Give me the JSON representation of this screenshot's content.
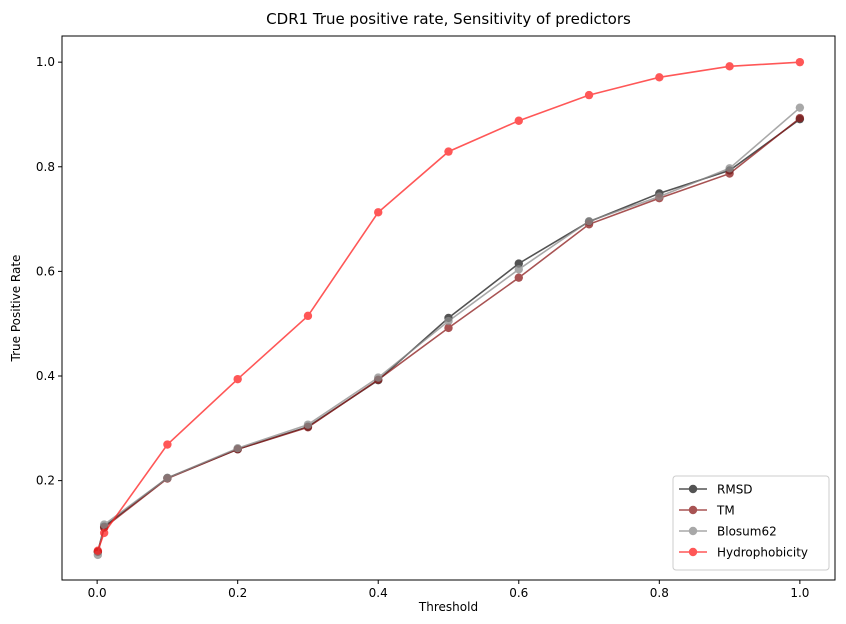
{
  "chart_data": {
    "type": "line",
    "title": "CDR1 True positive rate, Sensitivity of predictors",
    "xlabel": "Threshold",
    "ylabel": "True Positive Rate",
    "xlim": [
      -0.05,
      1.05
    ],
    "ylim": [
      0.01,
      1.05
    ],
    "x_ticks": [
      0.0,
      0.2,
      0.4,
      0.6,
      0.8,
      1.0
    ],
    "x_tick_labels": [
      "0.0",
      "0.2",
      "0.4",
      "0.6",
      "0.8",
      "1.0"
    ],
    "y_ticks": [
      0.2,
      0.4,
      0.6,
      0.8,
      1.0
    ],
    "y_tick_labels": [
      "0.2",
      "0.4",
      "0.6",
      "0.8",
      "1.0"
    ],
    "grid": false,
    "legend_position": "lower right",
    "x": [
      0.001,
      0.01,
      0.1,
      0.2,
      0.3,
      0.4,
      0.5,
      0.6,
      0.7,
      0.8,
      0.9,
      1.0
    ],
    "series": [
      {
        "name": "RMSD",
        "color": "#1a1a1a",
        "values": [
          0.064,
          0.112,
          0.205,
          0.26,
          0.303,
          0.392,
          0.511,
          0.615,
          0.695,
          0.749,
          0.793,
          0.891
        ]
      },
      {
        "name": "TM",
        "color": "#8b1a1a",
        "values": [
          0.064,
          0.11,
          0.204,
          0.26,
          0.302,
          0.393,
          0.492,
          0.588,
          0.69,
          0.74,
          0.787,
          0.893
        ]
      },
      {
        "name": "Blosum62",
        "color": "#8c8c8c",
        "values": [
          0.058,
          0.116,
          0.205,
          0.262,
          0.307,
          0.397,
          0.505,
          0.604,
          0.696,
          0.743,
          0.797,
          0.913
        ]
      },
      {
        "name": "Hydrophobicity",
        "color": "#ff2020",
        "values": [
          0.066,
          0.1,
          0.269,
          0.394,
          0.515,
          0.713,
          0.829,
          0.888,
          0.937,
          0.971,
          0.992,
          1.0
        ]
      }
    ]
  }
}
